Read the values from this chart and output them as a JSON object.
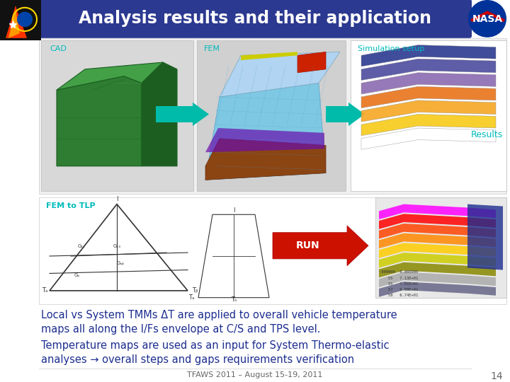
{
  "title": "Analysis results and their application",
  "title_text_color": "#FFFFFF",
  "title_bg_color": "#2B3990",
  "bg_color": "#FFFFFF",
  "label_cad": "CAD",
  "label_fem": "FEM",
  "label_sim": "Simulation setup",
  "label_fem_tlp": "FEM to TLP",
  "label_results": "Results",
  "label_run": "RUN",
  "label_color": "#00BBBB",
  "results_label_color": "#00BBBB",
  "text1": "Local vs System TMMs ΔT are applied to overall vehicle temperature\nmaps all along the I/Fs envelope at C/S and TPS level.",
  "text2": "Temperature maps are used as an input for System Thermo-elastic\nanalyses → overall steps and gaps requirements verification",
  "text_color": "#1C2D8F",
  "footer": "TFAWS 2011 – August 15-19, 2011",
  "page_num": "14",
  "footer_color": "#666666",
  "run_arrow_color": "#CC1100",
  "fem_arrow_color": "#00BBAA"
}
